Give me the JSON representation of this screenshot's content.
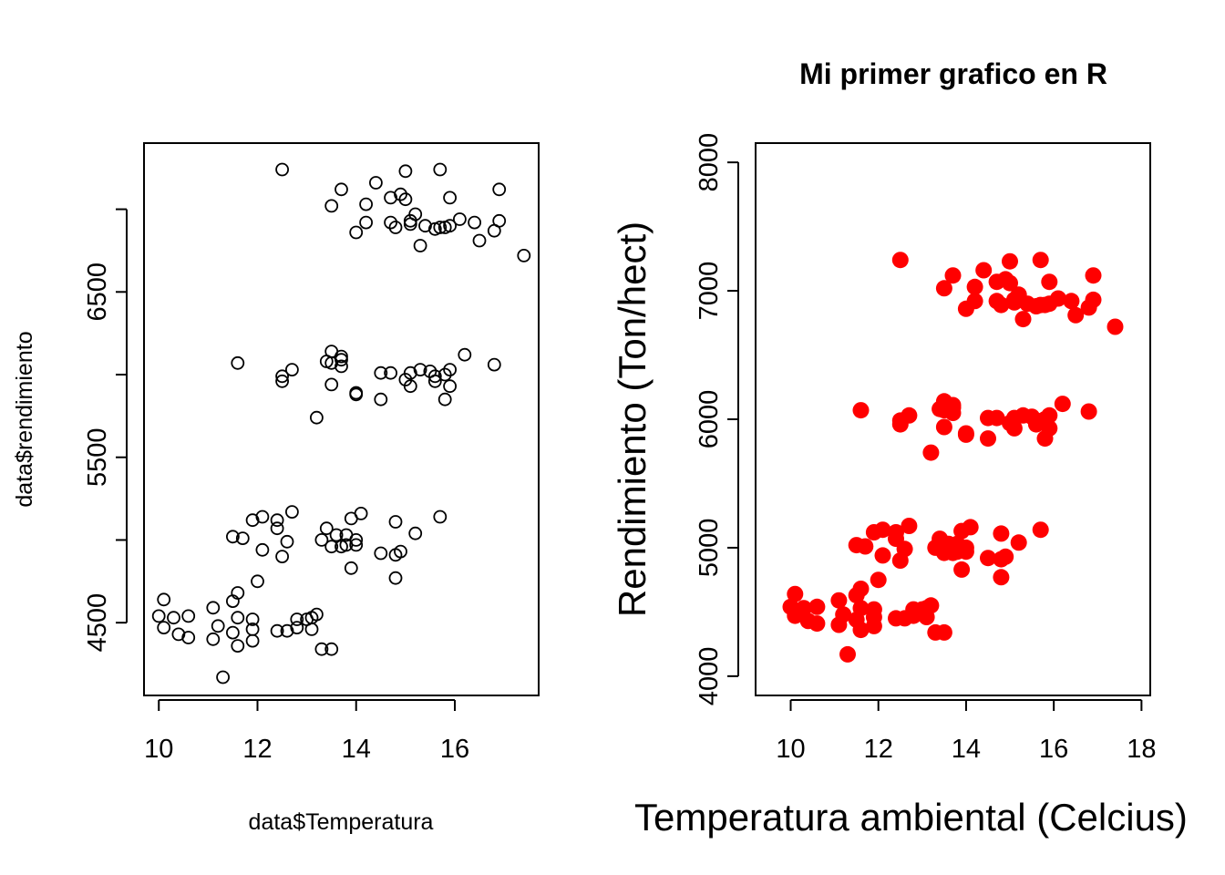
{
  "chart_data": [
    {
      "type": "scatter",
      "title": "",
      "xlabel": "data$Temperatura",
      "ylabel": "data$rendimiento",
      "xlim": [
        9.7,
        17.7
      ],
      "ylim": [
        4060,
        7400
      ],
      "xticks": [
        10,
        12,
        14,
        16
      ],
      "yticks": [
        4500,
        5500,
        6500
      ],
      "grid": false,
      "marker": "open-circle",
      "color": "#000000",
      "points_ref": "points"
    },
    {
      "type": "scatter",
      "title": "Mi primer grafico en R",
      "xlabel": "Temperatura ambiental (Celcius)",
      "ylabel": "Rendimiento (Ton/hect)",
      "xlim": [
        9.2,
        18.2
      ],
      "ylim": [
        3850,
        8150
      ],
      "xticks": [
        10,
        12,
        14,
        16,
        18
      ],
      "yticks": [
        4000,
        5000,
        6000,
        7000,
        8000
      ],
      "grid": false,
      "marker": "filled-circle",
      "color": "#ff0000",
      "points_ref": "points"
    }
  ],
  "points": [
    [
      10.0,
      4540
    ],
    [
      10.1,
      4640
    ],
    [
      10.1,
      4470
    ],
    [
      10.3,
      4530
    ],
    [
      10.4,
      4430
    ],
    [
      10.6,
      4540
    ],
    [
      10.6,
      4410
    ],
    [
      11.1,
      4590
    ],
    [
      11.1,
      4400
    ],
    [
      11.2,
      4480
    ],
    [
      11.3,
      4170
    ],
    [
      11.5,
      4440
    ],
    [
      11.5,
      4630
    ],
    [
      11.6,
      4530
    ],
    [
      11.6,
      4360
    ],
    [
      11.6,
      4680
    ],
    [
      11.9,
      4520
    ],
    [
      11.9,
      4460
    ],
    [
      11.9,
      4390
    ],
    [
      12.0,
      4750
    ],
    [
      12.4,
      4450
    ],
    [
      12.6,
      4450
    ],
    [
      12.8,
      4470
    ],
    [
      12.8,
      4520
    ],
    [
      13.0,
      4520
    ],
    [
      13.1,
      4460
    ],
    [
      13.1,
      4530
    ],
    [
      13.2,
      4550
    ],
    [
      13.3,
      4340
    ],
    [
      13.5,
      4340
    ],
    [
      11.5,
      5020
    ],
    [
      11.7,
      5010
    ],
    [
      11.9,
      5120
    ],
    [
      12.1,
      5140
    ],
    [
      12.1,
      4940
    ],
    [
      12.4,
      5120
    ],
    [
      12.4,
      5070
    ],
    [
      12.5,
      4900
    ],
    [
      12.6,
      4990
    ],
    [
      12.7,
      5170
    ],
    [
      13.3,
      5000
    ],
    [
      13.4,
      5070
    ],
    [
      13.5,
      4960
    ],
    [
      13.6,
      5030
    ],
    [
      13.7,
      4960
    ],
    [
      13.8,
      4970
    ],
    [
      13.8,
      5030
    ],
    [
      13.9,
      4830
    ],
    [
      13.9,
      5130
    ],
    [
      14.0,
      5000
    ],
    [
      14.0,
      4970
    ],
    [
      14.1,
      5160
    ],
    [
      14.5,
      4920
    ],
    [
      14.8,
      5110
    ],
    [
      14.8,
      4910
    ],
    [
      14.8,
      4770
    ],
    [
      14.9,
      4930
    ],
    [
      15.2,
      5040
    ],
    [
      15.7,
      5140
    ],
    [
      11.6,
      6070
    ],
    [
      12.5,
      5990
    ],
    [
      12.5,
      5960
    ],
    [
      12.7,
      6030
    ],
    [
      13.2,
      5740
    ],
    [
      13.4,
      6080
    ],
    [
      13.5,
      6140
    ],
    [
      13.5,
      6070
    ],
    [
      13.5,
      5940
    ],
    [
      13.7,
      6110
    ],
    [
      13.7,
      6090
    ],
    [
      13.7,
      6050
    ],
    [
      14.0,
      5880
    ],
    [
      14.0,
      5890
    ],
    [
      14.5,
      6010
    ],
    [
      14.5,
      5850
    ],
    [
      14.7,
      6010
    ],
    [
      15.0,
      5970
    ],
    [
      15.1,
      5930
    ],
    [
      15.1,
      6010
    ],
    [
      15.3,
      6030
    ],
    [
      15.5,
      6020
    ],
    [
      15.6,
      5960
    ],
    [
      15.6,
      5990
    ],
    [
      15.8,
      6000
    ],
    [
      15.8,
      5850
    ],
    [
      15.9,
      5930
    ],
    [
      15.9,
      6030
    ],
    [
      16.2,
      6120
    ],
    [
      16.8,
      6060
    ],
    [
      12.5,
      7240
    ],
    [
      13.5,
      7020
    ],
    [
      13.7,
      7120
    ],
    [
      14.0,
      6860
    ],
    [
      14.2,
      6920
    ],
    [
      14.2,
      7030
    ],
    [
      14.4,
      7160
    ],
    [
      14.7,
      7070
    ],
    [
      14.7,
      6920
    ],
    [
      14.8,
      6890
    ],
    [
      14.9,
      7090
    ],
    [
      15.0,
      7230
    ],
    [
      15.0,
      7060
    ],
    [
      15.1,
      6930
    ],
    [
      15.1,
      6910
    ],
    [
      15.2,
      6970
    ],
    [
      15.3,
      6780
    ],
    [
      15.4,
      6900
    ],
    [
      15.6,
      6880
    ],
    [
      15.7,
      6890
    ],
    [
      15.7,
      7240
    ],
    [
      15.8,
      6890
    ],
    [
      15.9,
      7070
    ],
    [
      15.9,
      6900
    ],
    [
      16.1,
      6940
    ],
    [
      16.4,
      6920
    ],
    [
      16.5,
      6810
    ],
    [
      16.8,
      6870
    ],
    [
      16.9,
      7120
    ],
    [
      16.9,
      6930
    ],
    [
      17.4,
      6720
    ]
  ]
}
